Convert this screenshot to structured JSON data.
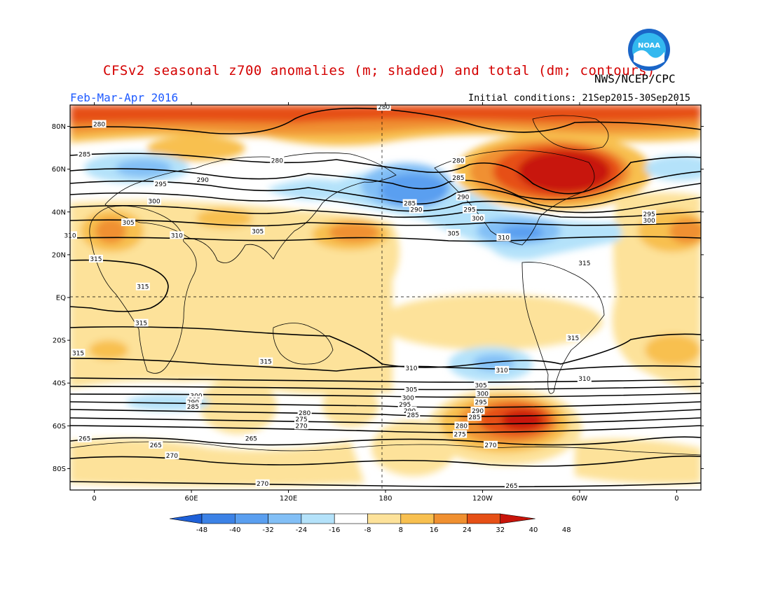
{
  "title": "CFSv2 seasonal z700 anomalies (m; shaded) and total (dm; contours)",
  "organization": "NWS/NCEP/CPC",
  "season": "Feb-Mar-Apr 2016",
  "initial_conditions": "Initial conditions: 21Sep2015-30Sep2015",
  "logo_text": "NOAA",
  "map": {
    "lat_ticks": [
      "80N",
      "60N",
      "40N",
      "20N",
      "EQ",
      "20S",
      "40S",
      "60S",
      "80S"
    ],
    "lon_ticks": [
      "0",
      "60E",
      "120E",
      "180",
      "120W",
      "60W",
      "0"
    ],
    "colorbar": {
      "labels": [
        "-48",
        "-40",
        "-32",
        "-24",
        "-16",
        "-8",
        "8",
        "16",
        "24",
        "32",
        "40",
        "48"
      ],
      "colors": [
        "#1e60d8",
        "#3c82e6",
        "#5a9ff0",
        "#82bff6",
        "#b4e2fa",
        "#ffffff",
        "#fde29a",
        "#f8c050",
        "#f09030",
        "#e65016",
        "#c8140a"
      ]
    },
    "contour_labels": [
      {
        "text": "280",
        "lat": 89,
        "lon": 179
      },
      {
        "text": "280",
        "lat": 81,
        "lon": 3
      },
      {
        "text": "285",
        "lat": 67,
        "lon": -6
      },
      {
        "text": "295",
        "lat": 53,
        "lon": 41
      },
      {
        "text": "290",
        "lat": 55,
        "lon": 67
      },
      {
        "text": "300",
        "lat": 45,
        "lon": 37
      },
      {
        "text": "305",
        "lat": 35,
        "lon": 21
      },
      {
        "text": "310",
        "lat": 29,
        "lon": 51
      },
      {
        "text": "315",
        "lat": 18,
        "lon": 1
      },
      {
        "text": "315",
        "lat": 5,
        "lon": 30
      },
      {
        "text": "315",
        "lat": -12,
        "lon": 29
      },
      {
        "text": "315",
        "lat": -26,
        "lon": -10
      },
      {
        "text": "280",
        "lat": 64,
        "lon": 113
      },
      {
        "text": "305",
        "lat": 31,
        "lon": 101
      },
      {
        "text": "295",
        "lat": 39,
        "lon": -17
      },
      {
        "text": "300",
        "lat": 36,
        "lon": -17
      },
      {
        "text": "310",
        "lat": 29,
        "lon": -15
      },
      {
        "text": "285",
        "lat": 44,
        "lon": -165
      },
      {
        "text": "290",
        "lat": 41,
        "lon": -161
      },
      {
        "text": "280",
        "lat": 64,
        "lon": -135
      },
      {
        "text": "285",
        "lat": 56,
        "lon": -135
      },
      {
        "text": "290",
        "lat": 47,
        "lon": -132
      },
      {
        "text": "295",
        "lat": 41,
        "lon": -128
      },
      {
        "text": "300",
        "lat": 37,
        "lon": -123
      },
      {
        "text": "305",
        "lat": 30,
        "lon": -138
      },
      {
        "text": "310",
        "lat": 28,
        "lon": -107
      },
      {
        "text": "315",
        "lat": 16,
        "lon": -57
      },
      {
        "text": "315",
        "lat": -19,
        "lon": -64
      },
      {
        "text": "310",
        "lat": -33,
        "lon": -164
      },
      {
        "text": "310",
        "lat": -34,
        "lon": -108
      },
      {
        "text": "310",
        "lat": -38,
        "lon": -57
      },
      {
        "text": "315",
        "lat": -30,
        "lon": 106
      },
      {
        "text": "305",
        "lat": -43,
        "lon": -164
      },
      {
        "text": "300",
        "lat": -47,
        "lon": -166
      },
      {
        "text": "295",
        "lat": -50,
        "lon": -168
      },
      {
        "text": "290",
        "lat": -53,
        "lon": -165
      },
      {
        "text": "285",
        "lat": -55,
        "lon": -163
      },
      {
        "text": "305",
        "lat": -41,
        "lon": -121
      },
      {
        "text": "300",
        "lat": -45,
        "lon": -120
      },
      {
        "text": "295",
        "lat": -49,
        "lon": -121
      },
      {
        "text": "290",
        "lat": -53,
        "lon": -123
      },
      {
        "text": "285",
        "lat": -56,
        "lon": -125
      },
      {
        "text": "280",
        "lat": -60,
        "lon": -133
      },
      {
        "text": "275",
        "lat": -64,
        "lon": -134
      },
      {
        "text": "270",
        "lat": -69,
        "lon": -115
      },
      {
        "text": "300",
        "lat": -46,
        "lon": 63
      },
      {
        "text": "295",
        "lat": -48,
        "lon": 62
      },
      {
        "text": "290",
        "lat": -49,
        "lon": 61
      },
      {
        "text": "285",
        "lat": -51,
        "lon": 61
      },
      {
        "text": "280",
        "lat": -54,
        "lon": 130
      },
      {
        "text": "275",
        "lat": -57,
        "lon": 128
      },
      {
        "text": "270",
        "lat": -60,
        "lon": 128
      },
      {
        "text": "265",
        "lat": -66,
        "lon": 97
      },
      {
        "text": "265",
        "lat": -69,
        "lon": 38
      },
      {
        "text": "270",
        "lat": -74,
        "lon": 48
      },
      {
        "text": "270",
        "lat": -87,
        "lon": 104
      },
      {
        "text": "265",
        "lat": -88,
        "lon": -102
      },
      {
        "text": "265",
        "lat": -66,
        "lon": -6
      }
    ]
  }
}
